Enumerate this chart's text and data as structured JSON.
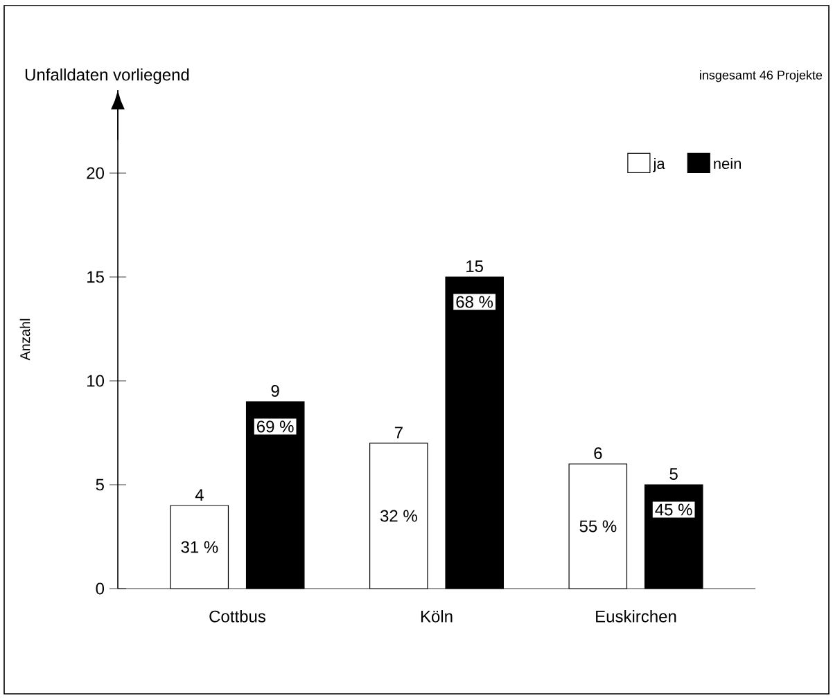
{
  "chart_data": {
    "type": "bar",
    "title": "Unfalldaten vorliegend",
    "ylabel": "Anzahl",
    "annotations": [
      "insgesamt 46 Projekte",
      "31 %",
      "69 %",
      "32 %",
      "68 %",
      "55 %",
      "45 %"
    ],
    "categories": [
      "Cottbus",
      "Köln",
      "Euskirchen"
    ],
    "series": [
      {
        "name": "ja",
        "color": "#ffffff",
        "values": [
          4,
          7,
          6
        ]
      },
      {
        "name": "nein",
        "color": "#000000",
        "values": [
          9,
          15,
          5
        ]
      }
    ],
    "ylim": [
      0,
      24
    ],
    "yticks": [
      0,
      5,
      10,
      15,
      20
    ],
    "data_labels": true,
    "legend": "top right"
  }
}
